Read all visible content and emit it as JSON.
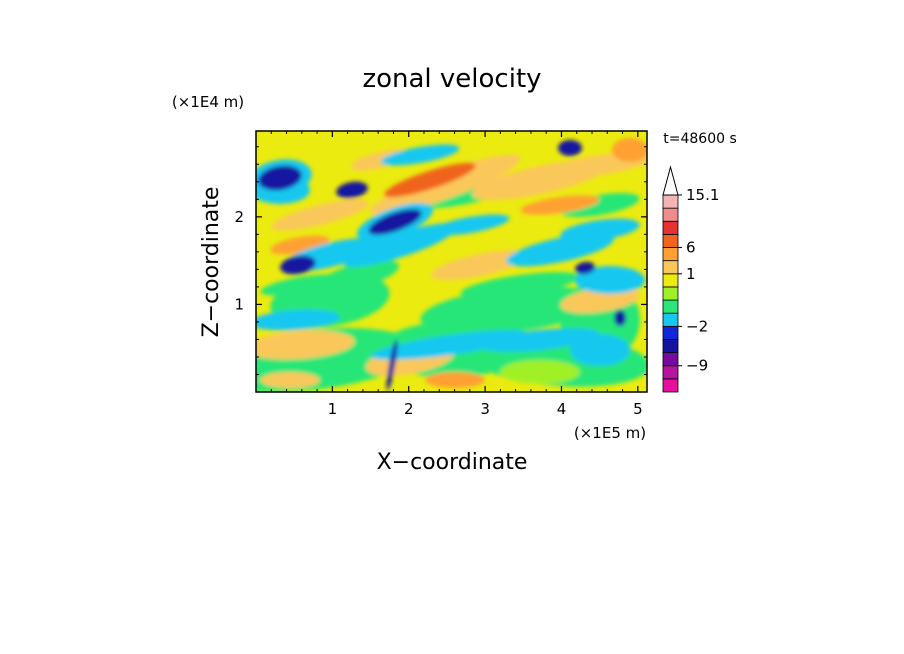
{
  "chart_data": {
    "type": "heatmap",
    "title": "zonal velocity",
    "xlabel": "X−coordinate",
    "ylabel": "Z−coordinate",
    "x_unit": "(×1E5 m)",
    "y_unit": "(×1E4 m)",
    "time_label": "t=48600 s",
    "xlim": [
      0,
      5.12
    ],
    "ylim": [
      0,
      2.98
    ],
    "x_ticks": [
      "1",
      "2",
      "3",
      "4",
      "5"
    ],
    "x_tick_values": [
      1,
      2,
      3,
      4,
      5
    ],
    "y_ticks": [
      "1",
      "2"
    ],
    "y_tick_values": [
      1,
      2
    ],
    "colorbar": {
      "levels": [
        -15,
        -12,
        -9,
        -6,
        -3,
        -2,
        -1,
        0,
        0.5,
        1,
        2,
        6,
        9,
        12,
        15.1
      ],
      "colors": [
        "#e60fa0",
        "#b414a0",
        "#780aa0",
        "#1414a0",
        "#0f28dc",
        "#19c8f0",
        "#28e678",
        "#a0f028",
        "#ebeb0f",
        "#fac85a",
        "#ffa032",
        "#f0641e",
        "#e63232",
        "#f08c8c",
        "#f5b4b4"
      ],
      "labels": [
        "15.1",
        "6",
        "1",
        "−2",
        "−9"
      ],
      "label_values": [
        15.1,
        6,
        1,
        -2,
        -9
      ],
      "extend": "max"
    },
    "grid": false
  }
}
